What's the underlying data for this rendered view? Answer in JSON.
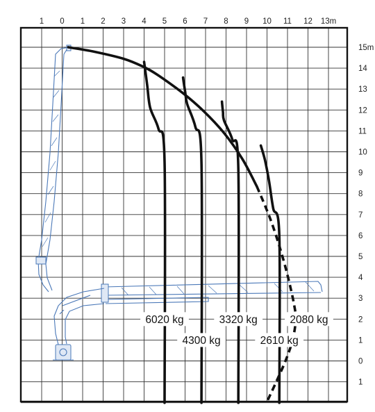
{
  "chart_data": {
    "type": "load-chart",
    "x_ticks": [
      "1",
      "0",
      "1",
      "2",
      "3",
      "4",
      "5",
      "6",
      "7",
      "8",
      "9",
      "10",
      "11",
      "12",
      "13m"
    ],
    "y_ticks": [
      "15m",
      "14",
      "13",
      "12",
      "11",
      "10",
      "9",
      "8",
      "7",
      "6",
      "5",
      "4",
      "3",
      "2",
      "1",
      "0",
      "1"
    ],
    "x_range": [
      -1,
      13
    ],
    "y_range": [
      -1.5,
      15.3
    ],
    "envelope": [
      [
        0.3,
        15.0
      ],
      [
        1.5,
        14.8
      ],
      [
        3.0,
        14.45
      ],
      [
        4.0,
        14.05
      ],
      [
        4.7,
        13.65
      ],
      [
        5.9,
        12.8
      ],
      [
        6.9,
        11.95
      ],
      [
        7.9,
        10.9
      ],
      [
        8.8,
        9.65
      ],
      [
        9.5,
        8.35
      ],
      [
        10.1,
        6.95
      ],
      [
        10.6,
        5.5
      ],
      [
        11.0,
        4.1
      ],
      [
        11.3,
        2.8
      ],
      [
        11.4,
        2.0
      ],
      [
        11.25,
        1.0
      ],
      [
        10.9,
        0.0
      ],
      [
        10.45,
        -1.0
      ],
      [
        10.0,
        -1.95
      ]
    ],
    "solid_envelope_end_x": 8.95,
    "curves": [
      {
        "load": "6020 kg",
        "points": [
          [
            4.0,
            14.3
          ],
          [
            4.15,
            13.2
          ],
          [
            4.3,
            12.1
          ],
          [
            4.7,
            11.1
          ],
          [
            5.0,
            9.5
          ],
          [
            5.0,
            -2.0
          ]
        ]
      },
      {
        "load": "4300 kg",
        "points": [
          [
            5.9,
            13.55
          ],
          [
            6.0,
            12.9
          ],
          [
            6.1,
            12.3
          ],
          [
            6.5,
            11.2
          ],
          [
            6.8,
            9.5
          ],
          [
            6.8,
            -2.0
          ]
        ]
      },
      {
        "load": "3320 kg",
        "points": [
          [
            7.8,
            12.4
          ],
          [
            7.85,
            11.9
          ],
          [
            7.9,
            11.5
          ],
          [
            8.3,
            10.6
          ],
          [
            8.6,
            9.2
          ],
          [
            8.6,
            -2.0
          ]
        ]
      },
      {
        "load": "2610 kg",
        "points": [
          [
            9.7,
            10.3
          ],
          [
            9.9,
            9.6
          ],
          [
            10.1,
            8.6
          ],
          [
            10.3,
            7.3
          ],
          [
            10.6,
            6.0
          ],
          [
            10.6,
            -2.0
          ]
        ]
      }
    ],
    "load_labels": [
      {
        "text": "6020 kg",
        "x": 5.0,
        "y": 2.0
      },
      {
        "text": "3320 kg",
        "x": 8.6,
        "y": 2.0
      },
      {
        "text": "2080 kg",
        "x": 12.05,
        "y": 2.0
      },
      {
        "text": "4300 kg",
        "x": 6.8,
        "y": 1.0
      },
      {
        "text": "2610 kg",
        "x": 10.6,
        "y": 1.0
      }
    ]
  }
}
